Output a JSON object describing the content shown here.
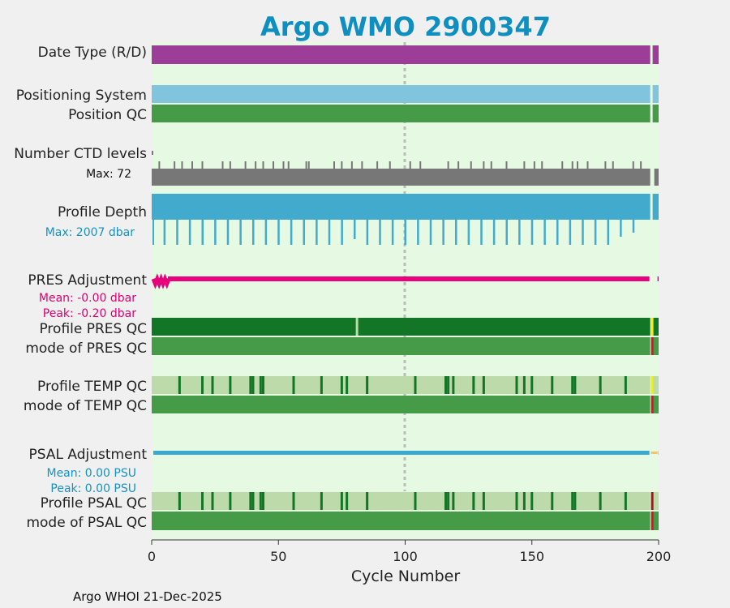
{
  "chart_data": {
    "type": "bar",
    "title": "Argo WMO 2900347",
    "xlabel": "Cycle Number",
    "xlim": [
      0,
      200
    ],
    "xticks": [
      0,
      50,
      100,
      150,
      200
    ],
    "footer": "Argo WHOI 21-Dec-2025",
    "rows": [
      {
        "label": "Date Type (R/D)"
      },
      {
        "label": "Positioning System"
      },
      {
        "label": "Position QC"
      },
      {
        "label": "Number CTD levels",
        "note": "Max: 72"
      },
      {
        "label": "Profile Depth",
        "note": "Max: 2007 dbar"
      },
      {
        "label": "PRES Adjustment",
        "note": "Mean: -0.00 dbar",
        "note2": "Peak: -0.20 dbar"
      },
      {
        "label": "Profile PRES QC"
      },
      {
        "label": "mode of PRES QC"
      },
      {
        "label": "Profile TEMP QC"
      },
      {
        "label": "mode of TEMP QC"
      },
      {
        "label": "PSAL Adjustment",
        "note": "Mean: 0.00 PSU",
        "note2": "Peak: 0.00 PSU"
      },
      {
        "label": "Profile PSAL QC"
      },
      {
        "label": "mode of PSAL QC"
      }
    ],
    "ctd_levels_max": 72,
    "ctd_tall_cycles": [
      3,
      9,
      12,
      16,
      20,
      28,
      31,
      37,
      41,
      44,
      48,
      52,
      54,
      61,
      62,
      72,
      75,
      79,
      83,
      89,
      94,
      102,
      106,
      117,
      121,
      126,
      131,
      134,
      140,
      147,
      151,
      154,
      162,
      166,
      168,
      172,
      179,
      182,
      190,
      193
    ],
    "depth_max_dbar": 2007,
    "depth_short_cycles": [
      5,
      10,
      15,
      20,
      25,
      30,
      35,
      40,
      45,
      50,
      55,
      60,
      65,
      70,
      75,
      80,
      85,
      90,
      95,
      100,
      105,
      110,
      115,
      120,
      125,
      130,
      135,
      140,
      145,
      150,
      155,
      160,
      165,
      170,
      175,
      180,
      185,
      190
    ],
    "pres_adjust_mean": -0.0,
    "pres_adjust_peak": -0.2,
    "psal_adjust_mean": 0.0,
    "psal_adjust_peak": 0.0,
    "pres_qc_flag_cycles": [
      81
    ],
    "temp_qc_flag_cycles": [
      11,
      20,
      24,
      31,
      39,
      40,
      43,
      44,
      56,
      67,
      75,
      77,
      85,
      104,
      116,
      117,
      119,
      127,
      131,
      144,
      147,
      150,
      158,
      166,
      167,
      177,
      187
    ],
    "psal_qc_flag_cycles": [
      11,
      20,
      24,
      31,
      39,
      40,
      43,
      44,
      56,
      67,
      75,
      77,
      85,
      104,
      116,
      117,
      119,
      127,
      131,
      144,
      147,
      150,
      158,
      166,
      167,
      177,
      187
    ],
    "last_cycle": 197
  },
  "colors": {
    "title": "#0f8ec0",
    "plot_bg": "#e6f9e2",
    "date_type": "#9c3d98",
    "positioning": "#80c4de",
    "qc_good": "#469b48",
    "qc_dark": "#137526",
    "qc_light": "#bcdaaa",
    "ctd": "#777777",
    "depth": "#42aacd",
    "pres_adj": "#e8007c",
    "psal_adj": "#3aa9d2",
    "note_blue": "#1592c5",
    "note_pink": "#e0006f",
    "yellow": "#f0f000",
    "red": "#c02020",
    "grid": "#bbbbbb"
  }
}
